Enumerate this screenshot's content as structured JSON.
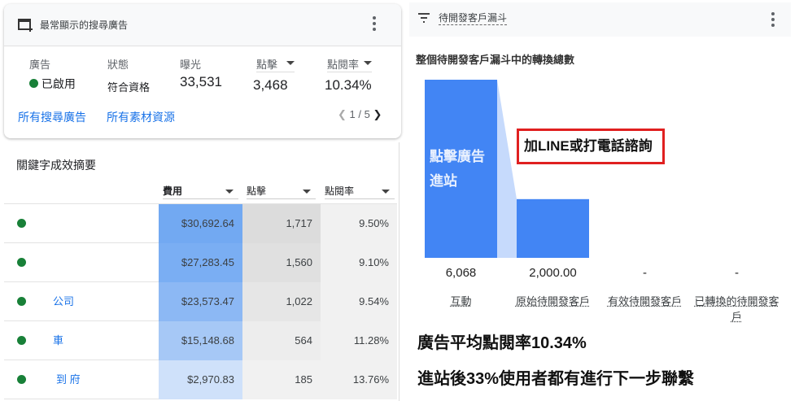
{
  "top_ads_card": {
    "title": "最常顯示的搜尋廣告",
    "headers": {
      "ad": "廣告",
      "status": "狀態",
      "impressions": "曝光",
      "clicks": "點擊",
      "ctr": "點閱率"
    },
    "values": {
      "ad": "已啟用",
      "status": "符合資格",
      "impressions": "33,531",
      "clicks": "3,468",
      "ctr": "10.34%"
    },
    "links": {
      "all_ads": "所有搜尋廣告",
      "all_assets": "所有素材資源"
    },
    "pagination": "1 / 5"
  },
  "keywords": {
    "title": "關鍵字成效摘要",
    "columns": [
      "費用",
      "點擊",
      "點閱率"
    ],
    "rows": [
      {
        "keyword": "",
        "cost": "$30,692.64",
        "clicks": "1,717",
        "ctr": "9.50%",
        "cost_color": "#72a9f2",
        "clicks_color": "#dcdcdc"
      },
      {
        "keyword": "",
        "cost": "$27,283.45",
        "clicks": "1,560",
        "ctr": "9.10%",
        "cost_color": "#7aaef3",
        "clicks_color": "#e0e0e0"
      },
      {
        "keyword": "公司",
        "cost": "$23,573.47",
        "clicks": "1,022",
        "ctr": "9.54%",
        "cost_color": "#8cb8f4",
        "clicks_color": "#e6e6e6"
      },
      {
        "keyword": "車",
        "cost": "$15,148.68",
        "clicks": "564",
        "ctr": "11.28%",
        "cost_color": "#a6c8f6",
        "clicks_color": "#ededed"
      },
      {
        "keyword": "到 府",
        "cost": "$2,970.83",
        "clicks": "185",
        "ctr": "13.76%",
        "cost_color": "#cfe1fa",
        "clicks_color": "#f1f1f1"
      }
    ]
  },
  "funnel": {
    "title": "待開發客戶漏斗",
    "subtitle": "整個待開發客戶漏斗中的轉換總數",
    "chart_data": {
      "type": "bar",
      "categories": [
        "互動",
        "原始待開發客戶",
        "有效待開發客戶",
        "已轉換的待開發客戶"
      ],
      "values": [
        6068,
        2000,
        null,
        null
      ],
      "value_labels": [
        "6,068",
        "2,000.00",
        "-",
        "-"
      ],
      "color": "#4285f4"
    },
    "bar_annotation": "點擊廣告進站",
    "callout": "加LINE或打電話諮詢"
  },
  "notes": [
    "廣告平均點閱率10.34%",
    "進站後33%使用者都有進行下一步聯繫"
  ]
}
